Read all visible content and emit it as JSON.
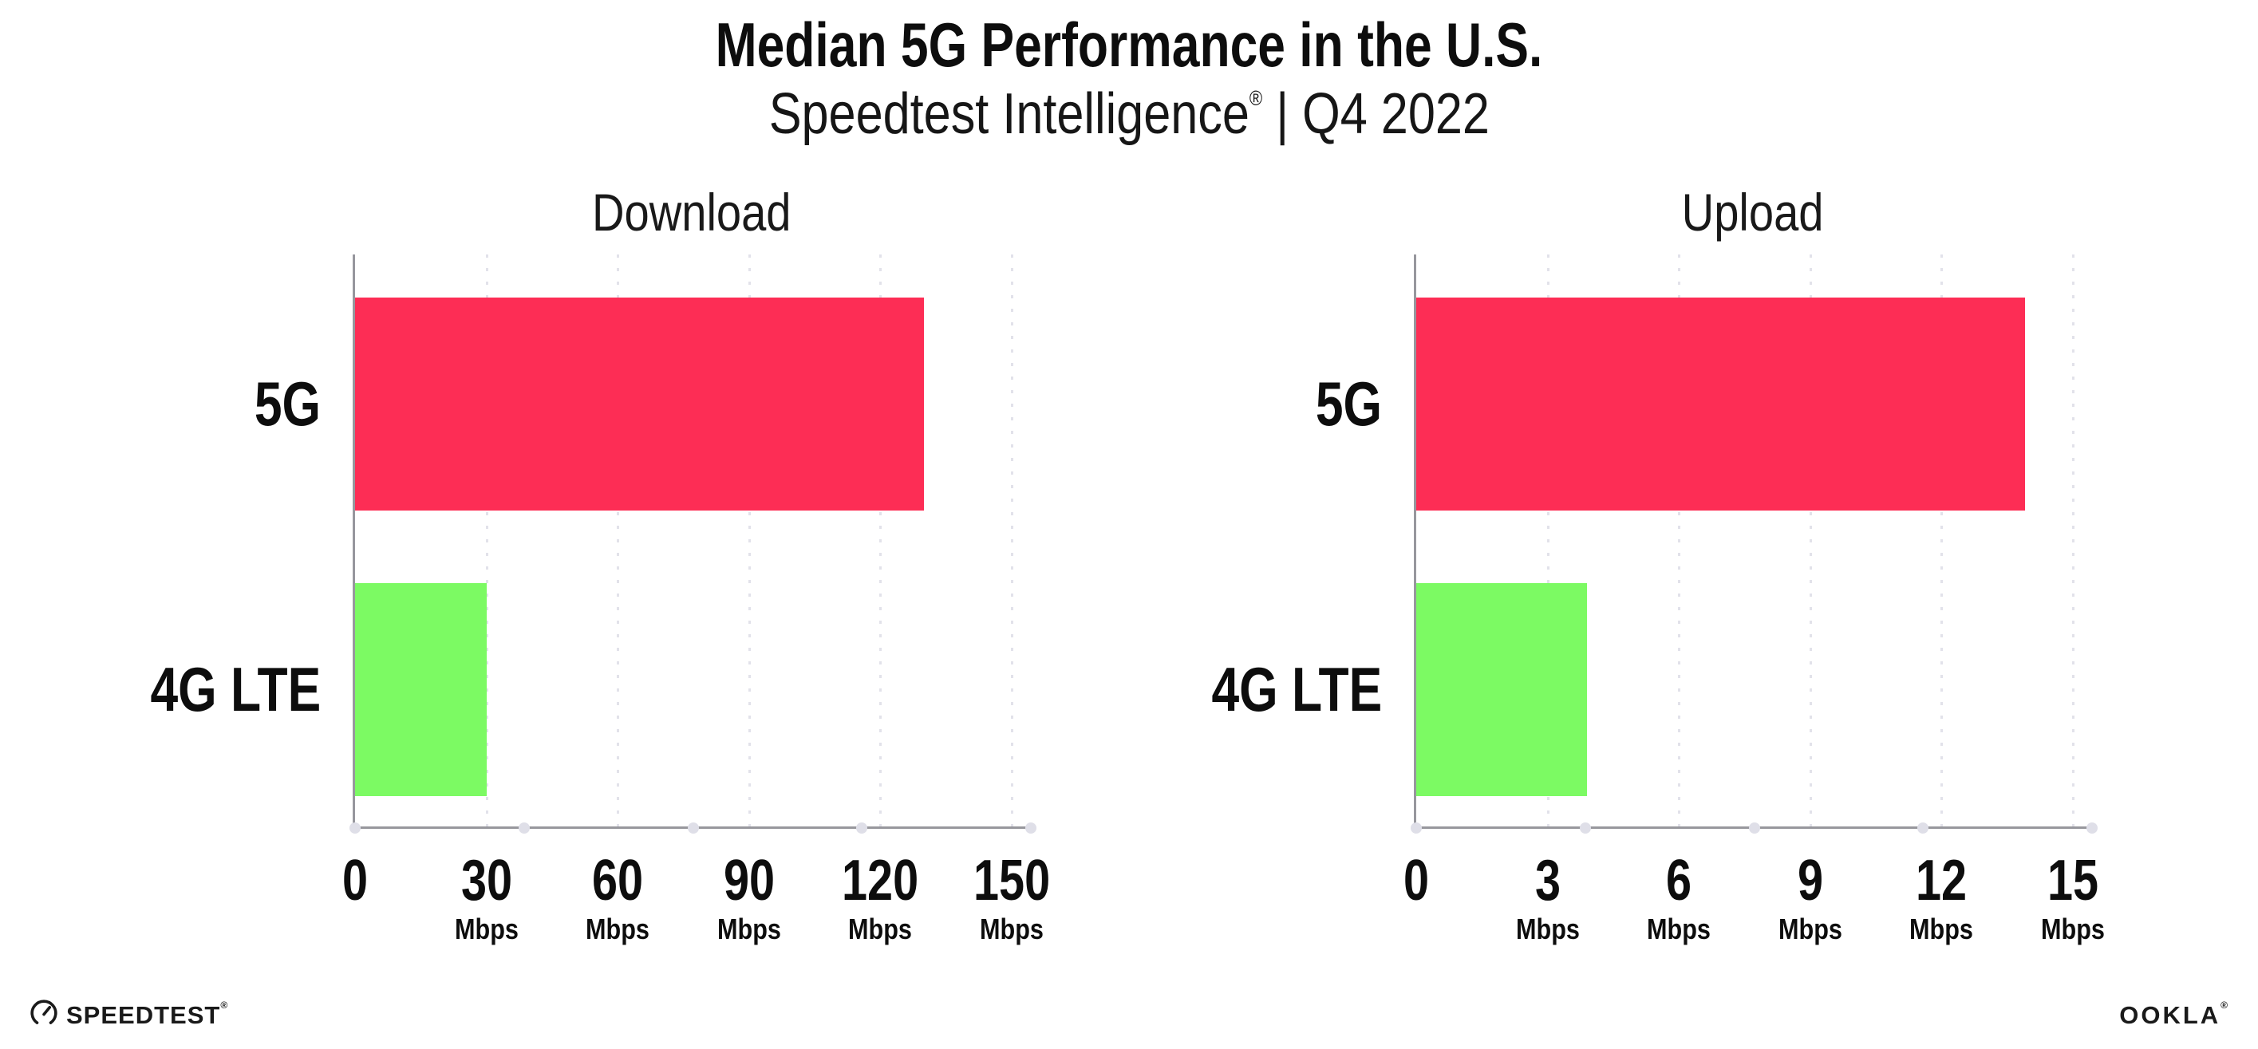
{
  "header": {
    "title": "Median 5G Performance in the U.S.",
    "subtitle_brand": "Speedtest Intelligence",
    "subtitle_mark": "®",
    "subtitle_rest": "| Q4 2022"
  },
  "chart_data": [
    {
      "type": "bar",
      "orientation": "horizontal",
      "title": "Download",
      "categories": [
        "5G",
        "4G LTE"
      ],
      "values": [
        130,
        30
      ],
      "xlabel": "Mbps",
      "xlim": [
        0,
        150
      ],
      "xticks": [
        0,
        30,
        60,
        90,
        120,
        150
      ],
      "bar_colors": [
        "#FD2D55",
        "#7CFA63"
      ],
      "grid": true,
      "legend": false
    },
    {
      "type": "bar",
      "orientation": "horizontal",
      "title": "Upload",
      "categories": [
        "5G",
        "4G LTE"
      ],
      "values": [
        13.9,
        3.9
      ],
      "xlabel": "Mbps",
      "xlim": [
        0,
        15
      ],
      "xticks": [
        0,
        3,
        6,
        9,
        12,
        15
      ],
      "bar_colors": [
        "#FD2D55",
        "#7CFA63"
      ],
      "grid": true,
      "legend": false
    }
  ],
  "colors": {
    "axis": "#97979d",
    "gridline": "#e2e2ea",
    "text": "#111111",
    "bar_5g": "#FD2D55",
    "bar_4g_lte": "#7CFA63"
  },
  "footer": {
    "speedtest_icon": "speedtest-gauge-icon",
    "speedtest_label": "SPEEDTEST",
    "speedtest_mark": "®",
    "ookla_label": "OOKLA",
    "ookla_mark": "®"
  }
}
